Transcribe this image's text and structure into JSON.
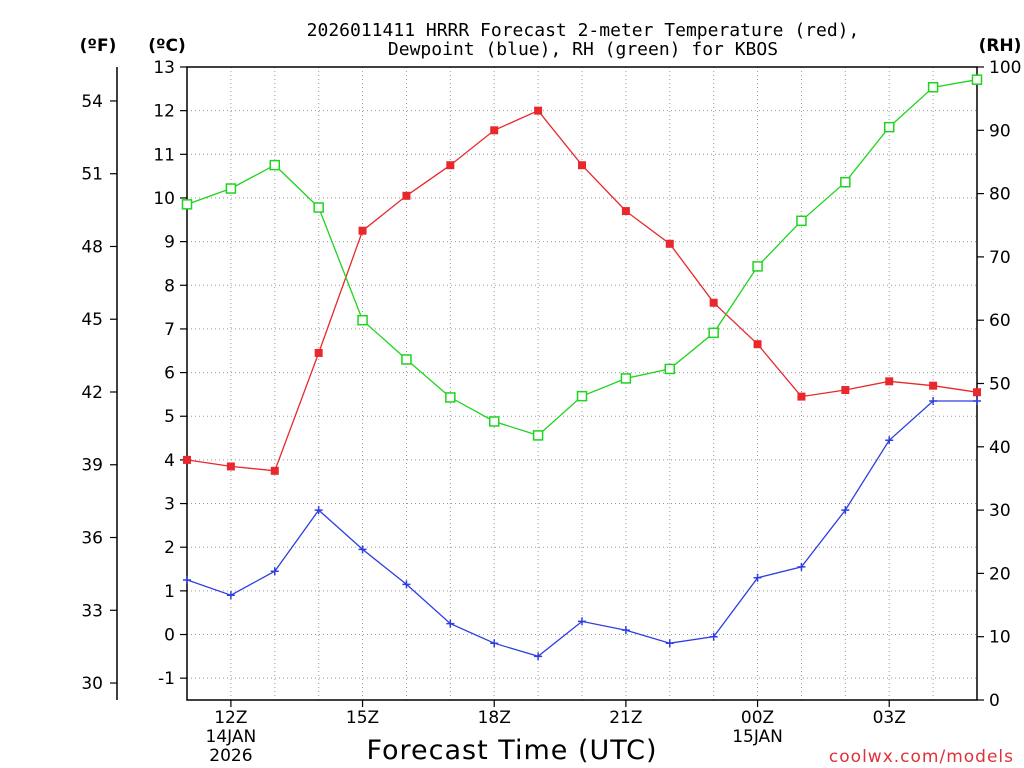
{
  "chart_data": {
    "type": "line",
    "title_lines": [
      "2026011411 HRRR Forecast 2-meter Temperature (red),",
      "Dewpoint (blue), RH (green) for KBOS"
    ],
    "xlabel": "Forecast Time (UTC)",
    "credit": "coolwx.com/models",
    "units": {
      "fahrenheit": "(ºF)",
      "celsius": "(ºC)",
      "rh": "(RH)"
    },
    "x": [
      11,
      12,
      13,
      14,
      15,
      16,
      17,
      18,
      19,
      20,
      21,
      22,
      23,
      24,
      25,
      26,
      27,
      28,
      29
    ],
    "xlim": [
      11,
      29
    ],
    "x_ticks": [
      {
        "x": 12,
        "label": "12Z",
        "sub1": "14JAN",
        "sub2": "2026"
      },
      {
        "x": 15,
        "label": "15Z",
        "sub1": "",
        "sub2": ""
      },
      {
        "x": 18,
        "label": "18Z",
        "sub1": "",
        "sub2": ""
      },
      {
        "x": 21,
        "label": "21Z",
        "sub1": "",
        "sub2": ""
      },
      {
        "x": 24,
        "label": "00Z",
        "sub1": "15JAN",
        "sub2": ""
      },
      {
        "x": 27,
        "label": "03Z",
        "sub1": "",
        "sub2": ""
      }
    ],
    "celsius_axis": {
      "ylim": [
        -1.5,
        13.0
      ],
      "ticks": [
        "-1",
        "0",
        "1",
        "2",
        "3",
        "4",
        "5",
        "6",
        "7",
        "8",
        "9",
        "10",
        "11",
        "12",
        "13"
      ]
    },
    "fahrenheit_axis": {
      "ticks": [
        "30",
        "33",
        "36",
        "39",
        "42",
        "45",
        "48",
        "51",
        "54"
      ]
    },
    "rh_axis": {
      "ylim": [
        0,
        100
      ],
      "ticks": [
        "0",
        "10",
        "20",
        "30",
        "40",
        "50",
        "60",
        "70",
        "80",
        "90",
        "100"
      ]
    },
    "series": [
      {
        "name": "Temperature",
        "color": "#e8282c",
        "marker": "filled-square",
        "axis": "celsius",
        "values": [
          4.0,
          3.85,
          3.75,
          6.45,
          9.25,
          10.05,
          10.75,
          11.55,
          12.0,
          10.75,
          9.7,
          8.95,
          7.6,
          6.65,
          5.45,
          5.6,
          5.8,
          5.7,
          5.55
        ]
      },
      {
        "name": "Dewpoint",
        "color": "#2e3ee0",
        "marker": "plus",
        "axis": "celsius",
        "values": [
          1.25,
          0.9,
          1.45,
          2.85,
          1.95,
          1.15,
          0.25,
          -0.2,
          -0.5,
          0.3,
          0.1,
          -0.2,
          -0.05,
          1.3,
          1.55,
          2.85,
          4.45,
          5.35,
          5.35
        ]
      },
      {
        "name": "RH",
        "color": "#1ed41e",
        "marker": "open-square",
        "axis": "rh",
        "values": [
          78.3,
          80.8,
          84.5,
          77.8,
          60.0,
          53.8,
          47.8,
          44.0,
          41.8,
          48.0,
          50.8,
          52.3,
          58.0,
          68.5,
          75.7,
          81.8,
          90.5,
          96.8,
          98.0
        ]
      }
    ]
  }
}
